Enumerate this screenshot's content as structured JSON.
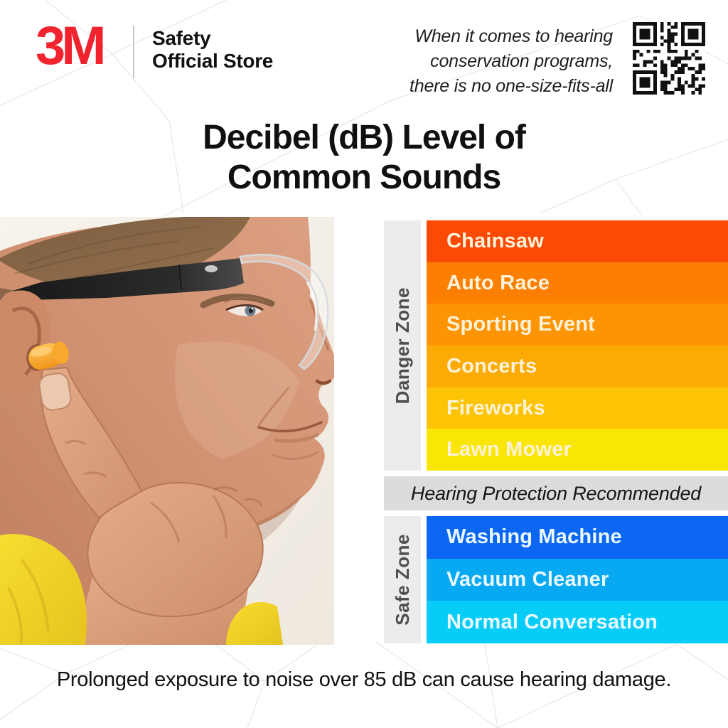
{
  "header": {
    "brand": "3M",
    "store_line1": "Safety",
    "store_line2": "Official Store",
    "tagline_line1": "When it comes to hearing",
    "tagline_line2": "conservation programs,",
    "tagline_line3": "there is no one-size-fits-all",
    "qr_icon": "qr-code-icon"
  },
  "title": {
    "line1": "Decibel (dB) Level of",
    "line2": "Common Sounds"
  },
  "chart_data": {
    "type": "bar",
    "title": "Decibel (dB) Level of Common Sounds",
    "orientation": "horizontal-rows-loudest-to-quietest",
    "legend_position": "left-rotated-zone-labels",
    "zones": [
      {
        "label": "Danger Zone",
        "items": [
          {
            "name": "Chainsaw",
            "color": "#FB4A05"
          },
          {
            "name": "Auto Race",
            "color": "#FC7F02"
          },
          {
            "name": "Sporting Event",
            "color": "#FC9403"
          },
          {
            "name": "Concerts",
            "color": "#FCAB04"
          },
          {
            "name": "Fireworks",
            "color": "#FCC405"
          },
          {
            "name": "Lawn Mower",
            "color": "#FAE604"
          }
        ]
      },
      {
        "label": "Safe Zone",
        "items": [
          {
            "name": "Washing Machine",
            "color": "#0B67F2"
          },
          {
            "name": "Vacuum Cleaner",
            "color": "#08A9F3"
          },
          {
            "name": "Normal Conversation",
            "color": "#05CDF7"
          }
        ]
      }
    ],
    "divider_label": "Hearing Protection Recommended"
  },
  "caption": "Prolonged exposure to noise over 85 dB can cause hearing damage.",
  "colors": {
    "brand_red": "#F0232E",
    "zone_column_bg": "#ECECEC",
    "divider_band_bg": "#DCDCDC",
    "zone_label_text": "#4F4F4F",
    "warm_bar_text": "#FDF2D8",
    "cool_bar_text": "#EAF8FF"
  }
}
